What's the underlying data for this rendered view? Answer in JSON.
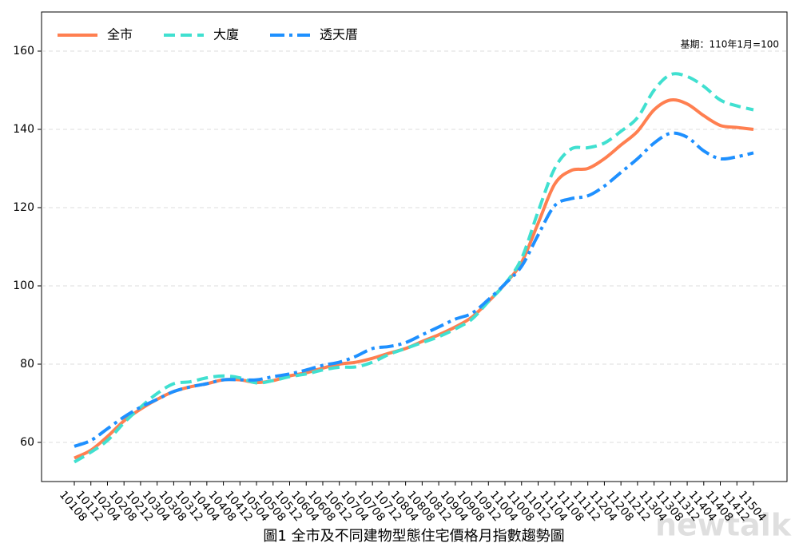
{
  "chart_data": {
    "type": "line",
    "title": "圖1  全市及不同建物型態住宅價格月指數趨勢圖",
    "annotation": "基期：110年1月=100",
    "watermark": "newtalk",
    "categories": [
      "10108",
      "10112",
      "10204",
      "10208",
      "10212",
      "10304",
      "10308",
      "10312",
      "10404",
      "10408",
      "10412",
      "10504",
      "10508",
      "10512",
      "10604",
      "10608",
      "10612",
      "10704",
      "10708",
      "10712",
      "10804",
      "10808",
      "10812",
      "10904",
      "10908",
      "10912",
      "11004",
      "11008",
      "11012",
      "11104",
      "11108",
      "11112",
      "11204",
      "11208",
      "11212",
      "11304",
      "11308",
      "11312",
      "11404",
      "11408",
      "11412",
      "11504"
    ],
    "series": [
      {
        "name": "全市",
        "color": "#ff7f50",
        "dash": "solid",
        "values": [
          56,
          58,
          61.5,
          65.5,
          68.5,
          71,
          73,
          74.2,
          75,
          76,
          76,
          75.3,
          75.8,
          77,
          77.8,
          79,
          80,
          80.5,
          81.5,
          82.8,
          84,
          85.8,
          87.5,
          89.5,
          92,
          96,
          100.5,
          106,
          116,
          126,
          129.5,
          130,
          132.5,
          136,
          139.5,
          145,
          147.5,
          146.5,
          143.5,
          141,
          140.5,
          140
        ]
      },
      {
        "name": "大廈",
        "color": "#40e0d0",
        "dash": "dashed",
        "values": [
          55,
          57.5,
          60.5,
          65,
          69,
          72.5,
          75,
          75.5,
          76.5,
          77,
          76.5,
          75.2,
          75.8,
          76.8,
          77.5,
          78.5,
          79.2,
          79.3,
          80.5,
          82.5,
          84,
          85.5,
          87,
          89,
          91.5,
          96,
          100.5,
          107,
          119,
          130,
          135,
          135.3,
          136.5,
          139.5,
          143,
          150,
          154,
          153.5,
          151,
          147.5,
          146,
          145
        ]
      },
      {
        "name": "透天厝",
        "color": "#1e90ff",
        "dash": "dashdot",
        "values": [
          59,
          60.5,
          63.5,
          66.5,
          69,
          71,
          73,
          74.2,
          75,
          76,
          76,
          76,
          76.8,
          77.5,
          78.5,
          79.7,
          80.5,
          82,
          84,
          84.5,
          85.5,
          87.5,
          89.5,
          91.5,
          93,
          96.5,
          100.5,
          105,
          113,
          120.5,
          122.3,
          123,
          125.5,
          129,
          132.5,
          136.5,
          139,
          138,
          134.5,
          132.5,
          133,
          134
        ]
      }
    ],
    "ylim": [
      50,
      170
    ],
    "yticks": [
      60,
      80,
      100,
      120,
      140,
      160
    ],
    "grid": true
  }
}
